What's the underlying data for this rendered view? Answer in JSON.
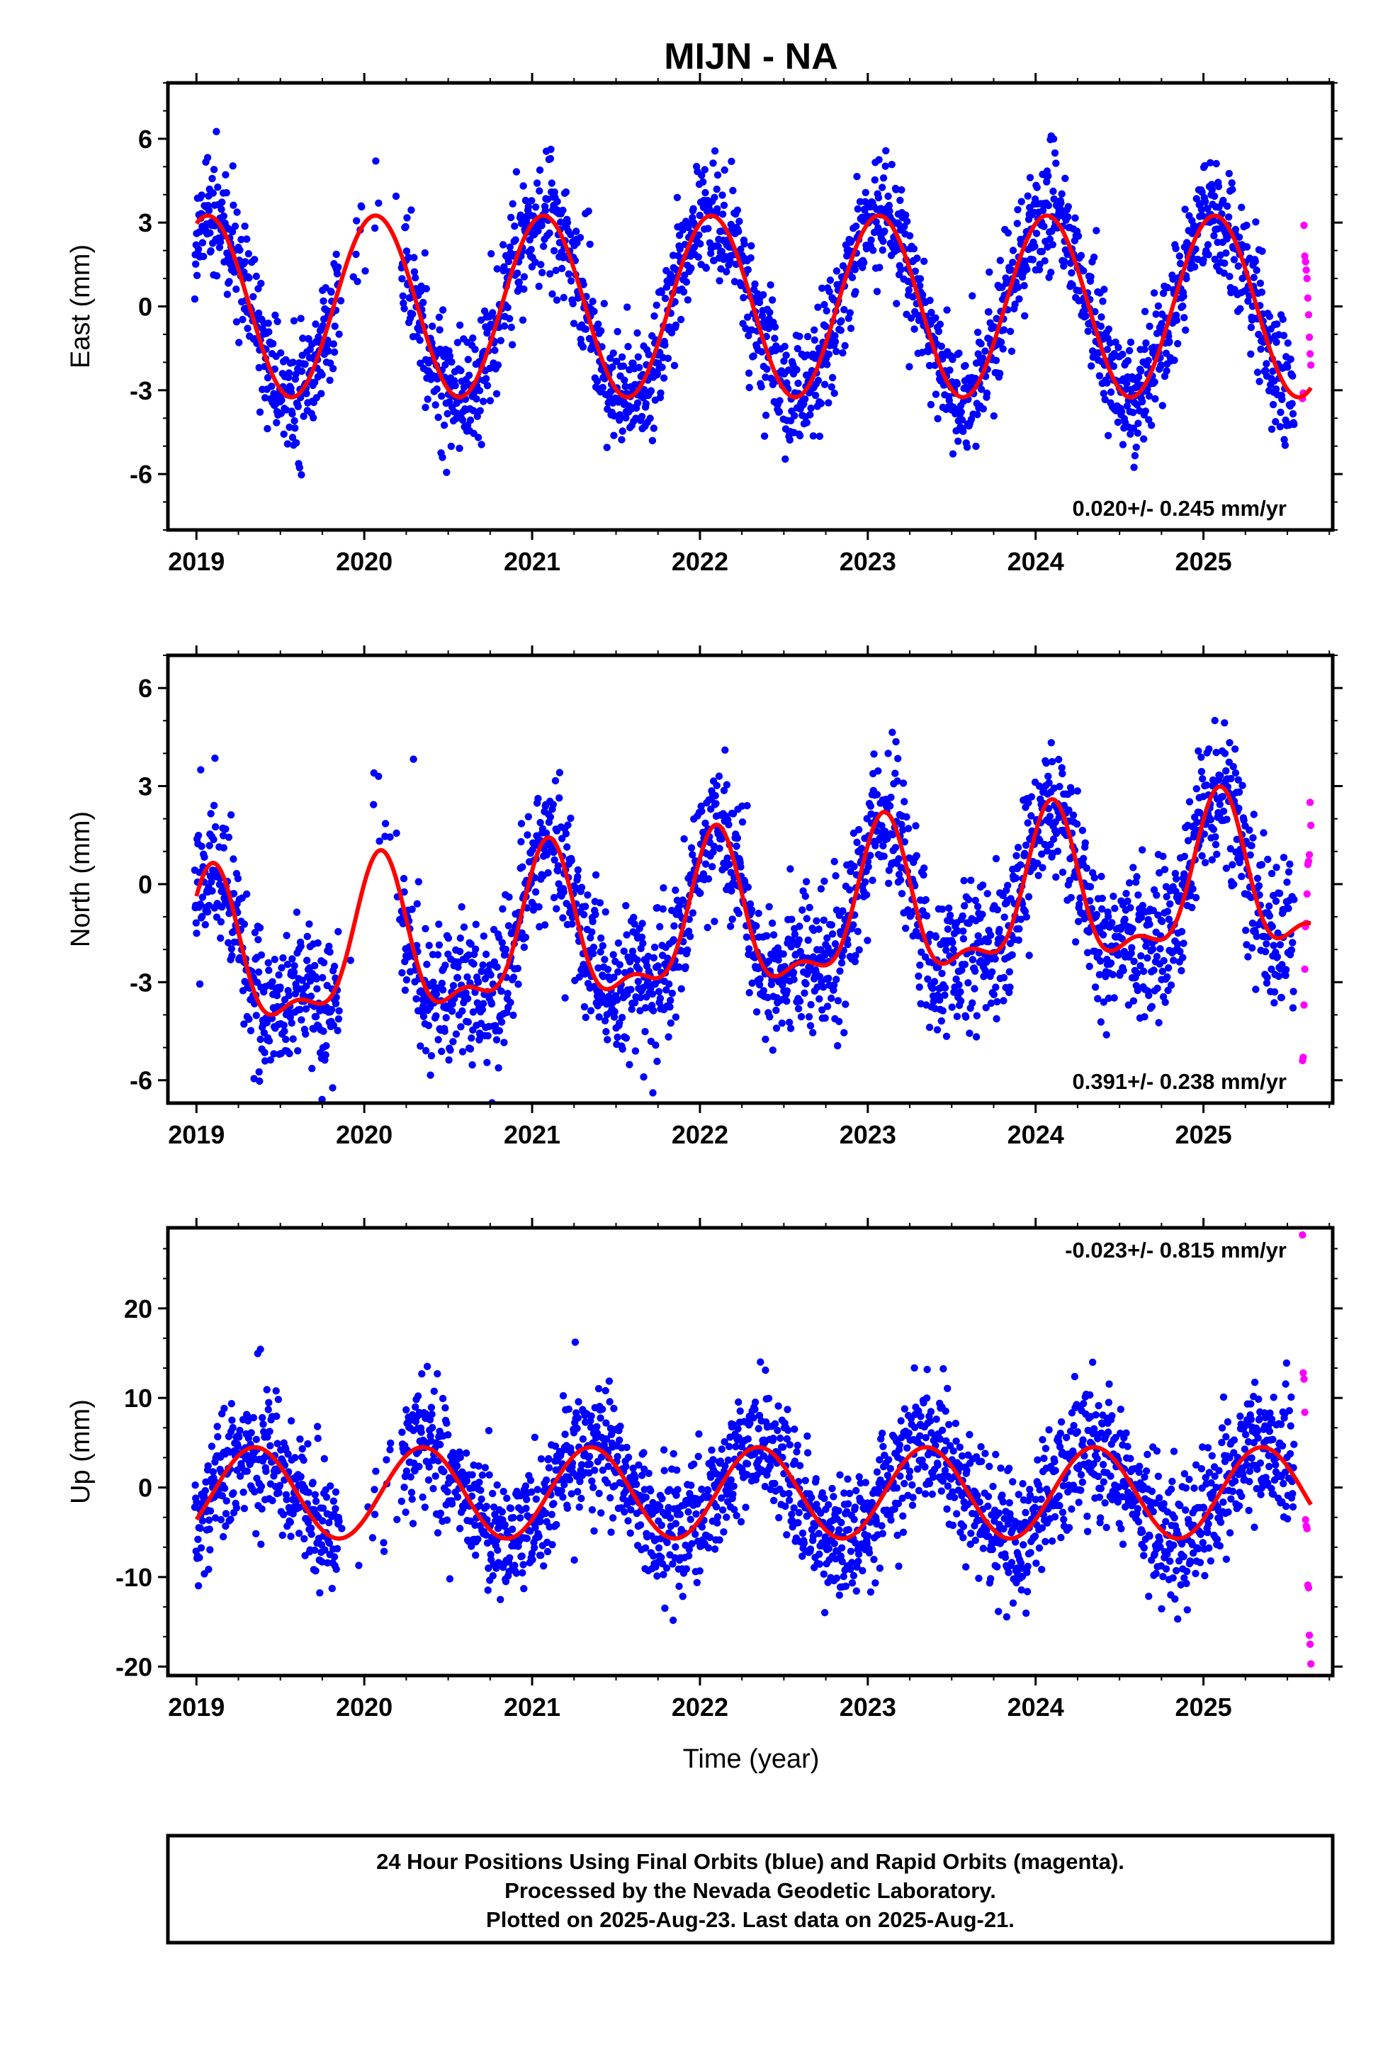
{
  "chart_data": {
    "type": "scatter",
    "title": "MIJN - NA",
    "xlabel": "Time (year)",
    "xlim": [
      2018.83,
      2025.77
    ],
    "x_ticks": [
      "2019",
      "2020",
      "2021",
      "2022",
      "2023",
      "2024",
      "2025"
    ],
    "last_final_epoch": 2025.54,
    "rapid_start_epoch": 2025.59,
    "last_epoch": 2025.64,
    "series_colors": {
      "final": "#0000ff",
      "rapid": "#ff00ff",
      "model": "#ff0000"
    },
    "panels": [
      {
        "key": "east",
        "ylabel": "East (mm)",
        "ylim": [
          -8,
          8
        ],
        "y_ticks": [
          "6",
          "3",
          "0",
          "-3",
          "-6"
        ],
        "y_tick_values": [
          6,
          3,
          0,
          -3,
          -6
        ],
        "rate_text": "0.020+/- 0.245 mm/yr",
        "rate_position": "bottom-right",
        "model": {
          "amp": 3.25,
          "phase": 1.15,
          "trend": 0.0,
          "offset": 0.0
        },
        "scatter_sd": 1.1,
        "rapid_values": [
          -3.3,
          -3.1,
          2.9,
          1.8,
          1.6,
          1.3,
          1.0,
          0.3,
          -0.3,
          -1.1,
          -1.7,
          -2.1
        ]
      },
      {
        "key": "north",
        "ylabel": "North (mm)",
        "ylim": [
          -6.7,
          7
        ],
        "y_ticks": [
          "6",
          "3",
          "0",
          "-3",
          "-6"
        ],
        "y_tick_values": [
          6,
          3,
          0,
          -3,
          -6
        ],
        "rate_text": "0.391+/- 0.238 mm/yr",
        "rate_position": "bottom-right",
        "model": {
          "amp": 2.2,
          "phase": 1.0,
          "amp2": 0.9,
          "phase2": 0.3,
          "trend": 0.39,
          "offset": -1.2
        },
        "scatter_sd": 1.1,
        "rapid_values": [
          -5.4,
          -5.3,
          -3.7,
          -2.6,
          -1.3,
          -1.2,
          -0.3,
          0.6,
          0.7,
          0.9,
          2.5,
          1.8
        ]
      },
      {
        "key": "up",
        "ylabel": "Up (mm)",
        "ylim": [
          -21,
          29
        ],
        "y_ticks": [
          "20",
          "10",
          "0",
          "-10",
          "-20"
        ],
        "y_tick_values": [
          20,
          10,
          0,
          -10,
          -20
        ],
        "rate_text": "-0.023+/- 0.815 mm/yr",
        "rate_position": "top-right",
        "model": {
          "amp": 5.1,
          "phase": -0.62,
          "trend": 0.0,
          "offset": -0.6
        },
        "scatter_sd": 3.6,
        "rapid_values": [
          28.2,
          12.8,
          12.1,
          8.4,
          -3.6,
          -4.3,
          -4.6,
          -10.9,
          -11.2,
          -16.5,
          -17.5,
          -19.7
        ]
      }
    ]
  },
  "footer": {
    "line1": "24 Hour Positions Using Final Orbits (blue) and Rapid Orbits (magenta).",
    "line2": "Processed by the Nevada Geodetic Laboratory.",
    "line3": "Plotted on 2025-Aug-23. Last data on 2025-Aug-21."
  }
}
